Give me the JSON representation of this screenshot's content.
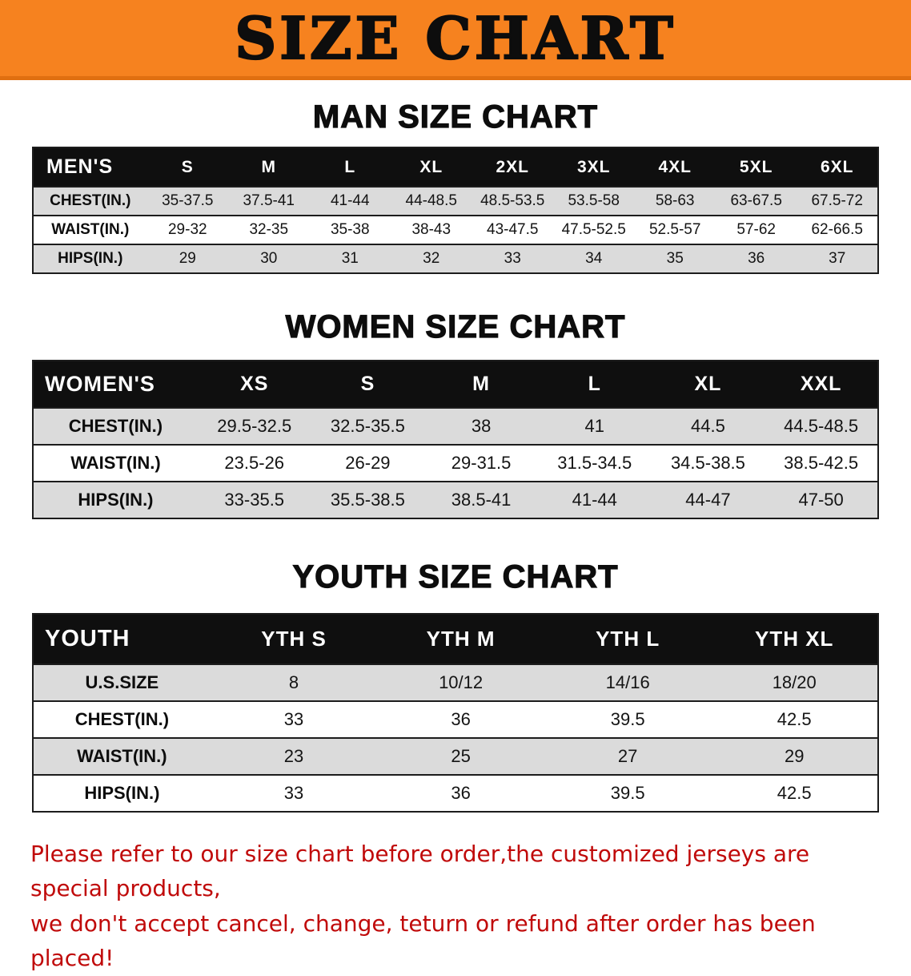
{
  "banner": {
    "title": "SIZE CHART",
    "bg_color": "#f6821f"
  },
  "sections": [
    {
      "heading": "MAN SIZE CHART",
      "table": {
        "header": [
          "MEN'S",
          "S",
          "M",
          "L",
          "XL",
          "2XL",
          "3XL",
          "4XL",
          "5XL",
          "6XL"
        ],
        "rows": [
          [
            "CHEST(IN.)",
            "35-37.5",
            "37.5-41",
            "41-44",
            "44-48.5",
            "48.5-53.5",
            "53.5-58",
            "58-63",
            "63-67.5",
            "67.5-72"
          ],
          [
            "WAIST(IN.)",
            "29-32",
            "32-35",
            "35-38",
            "38-43",
            "43-47.5",
            "47.5-52.5",
            "52.5-57",
            "57-62",
            "62-66.5"
          ],
          [
            "HIPS(IN.)",
            "29",
            "30",
            "31",
            "32",
            "33",
            "34",
            "35",
            "36",
            "37"
          ]
        ]
      }
    },
    {
      "heading": "WOMEN SIZE CHART",
      "table": {
        "header": [
          "WOMEN'S",
          "XS",
          "S",
          "M",
          "L",
          "XL",
          "XXL"
        ],
        "rows": [
          [
            "CHEST(IN.)",
            "29.5-32.5",
            "32.5-35.5",
            "38",
            "41",
            "44.5",
            "44.5-48.5"
          ],
          [
            "WAIST(IN.)",
            "23.5-26",
            "26-29",
            "29-31.5",
            "31.5-34.5",
            "34.5-38.5",
            "38.5-42.5"
          ],
          [
            "HIPS(IN.)",
            "33-35.5",
            "35.5-38.5",
            "38.5-41",
            "41-44",
            "44-47",
            "47-50"
          ]
        ]
      }
    },
    {
      "heading": "YOUTH SIZE CHART",
      "table": {
        "header": [
          "YOUTH",
          "YTH S",
          "YTH M",
          "YTH L",
          "YTH XL"
        ],
        "rows": [
          [
            "U.S.SIZE",
            "8",
            "10/12",
            "14/16",
            "18/20"
          ],
          [
            "CHEST(IN.)",
            "33",
            "36",
            "39.5",
            "42.5"
          ],
          [
            "WAIST(IN.)",
            "23",
            "25",
            "27",
            "29"
          ],
          [
            "HIPS(IN.)",
            "33",
            "36",
            "39.5",
            "42.5"
          ]
        ]
      }
    }
  ],
  "footer": {
    "color": "#c00a0a",
    "lines": [
      "Please refer to our size chart before order,the customized jerseys are special products,",
      "we don't accept cancel, change, teturn or refund after order has been placed!"
    ]
  }
}
